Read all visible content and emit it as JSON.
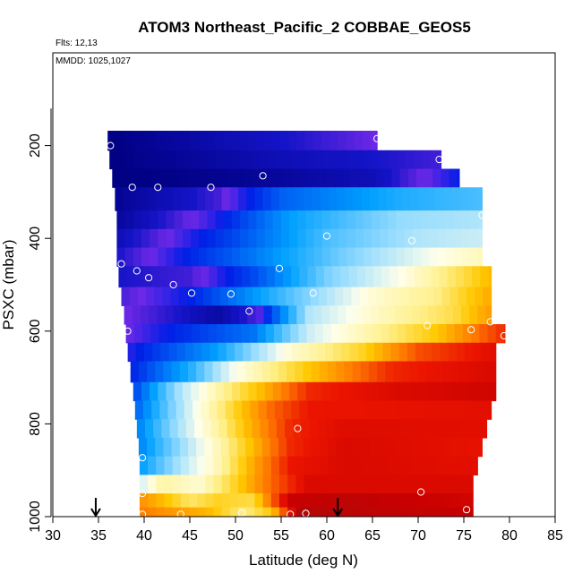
{
  "chart_data": {
    "type": "heatmap",
    "title": "ATOM3 Northeast_Pacific_2 COBBAE_GEOS5",
    "annotations": {
      "flights": "Flts: 12,13",
      "dates": "MMDD: 1025,1027"
    },
    "xlabel": "Latitude (deg N)",
    "ylabel": "PSXC (mbar)",
    "xlim": [
      30,
      85
    ],
    "ylim": [
      1000,
      0
    ],
    "x_ticks": [
      30,
      35,
      40,
      45,
      50,
      55,
      60,
      65,
      70,
      75,
      80,
      85
    ],
    "y_ticks": [
      200,
      400,
      600,
      800,
      1000
    ],
    "y_axis_reversed": true,
    "colorscale": "blue-white-yellow-red",
    "profile_markers_lat": [
      34.7,
      61.2
    ],
    "curtain_bands": [
      {
        "p_top": 168,
        "p_bot": 210,
        "lat_min": 36.0,
        "lat_max": 65.5,
        "stops": [
          [
            36,
            0.0
          ],
          [
            50,
            0.06
          ],
          [
            58,
            0.09
          ],
          [
            65.5,
            0.12
          ]
        ]
      },
      {
        "p_top": 210,
        "p_bot": 250,
        "lat_min": 36.2,
        "lat_max": 72.5,
        "stops": [
          [
            36,
            0.0
          ],
          [
            55,
            0.06
          ],
          [
            65,
            0.08
          ],
          [
            72.5,
            0.1
          ]
        ]
      },
      {
        "p_top": 250,
        "p_bot": 290,
        "lat_min": 36.5,
        "lat_max": 74.5,
        "stops": [
          [
            36,
            0.0
          ],
          [
            45,
            0.01
          ],
          [
            55,
            0.03
          ],
          [
            65,
            0.06
          ],
          [
            74.5,
            0.16
          ]
        ]
      },
      {
        "p_top": 290,
        "p_bot": 340,
        "lat_min": 36.8,
        "lat_max": 77.0,
        "stops": [
          [
            37,
            0.02
          ],
          [
            48,
            0.1
          ],
          [
            55,
            0.22
          ],
          [
            68,
            0.3
          ],
          [
            77,
            0.33
          ]
        ]
      },
      {
        "p_top": 340,
        "p_bot": 380,
        "lat_min": 37.0,
        "lat_max": 77.0,
        "stops": [
          [
            37,
            0.03
          ],
          [
            48,
            0.15
          ],
          [
            56,
            0.28
          ],
          [
            68,
            0.38
          ],
          [
            77,
            0.4
          ]
        ]
      },
      {
        "p_top": 380,
        "p_bot": 420,
        "lat_min": 37.0,
        "lat_max": 77.0,
        "stops": [
          [
            37,
            0.06
          ],
          [
            50,
            0.2
          ],
          [
            60,
            0.33
          ],
          [
            70,
            0.4
          ],
          [
            77,
            0.42
          ]
        ]
      },
      {
        "p_top": 420,
        "p_bot": 460,
        "lat_min": 37.0,
        "lat_max": 77.0,
        "stops": [
          [
            37,
            0.08
          ],
          [
            50,
            0.22
          ],
          [
            62,
            0.36
          ],
          [
            72,
            0.46
          ],
          [
            77,
            0.5
          ]
        ]
      },
      {
        "p_top": 460,
        "p_bot": 505,
        "lat_min": 37.2,
        "lat_max": 78.0,
        "stops": [
          [
            37,
            0.08
          ],
          [
            45,
            0.1
          ],
          [
            52,
            0.2
          ],
          [
            60,
            0.36
          ],
          [
            68,
            0.46
          ],
          [
            75,
            0.58
          ],
          [
            78,
            0.64
          ]
        ]
      },
      {
        "p_top": 505,
        "p_bot": 545,
        "lat_min": 37.5,
        "lat_max": 78.0,
        "stops": [
          [
            37,
            0.1
          ],
          [
            45,
            0.16
          ],
          [
            55,
            0.32
          ],
          [
            65,
            0.48
          ],
          [
            72,
            0.54
          ],
          [
            78,
            0.66
          ]
        ]
      },
      {
        "p_top": 545,
        "p_bot": 585,
        "lat_min": 37.8,
        "lat_max": 78.0,
        "stops": [
          [
            38,
            0.12
          ],
          [
            44,
            0.08
          ],
          [
            48,
            0.04
          ],
          [
            52,
            0.1
          ],
          [
            58,
            0.4
          ],
          [
            66,
            0.5
          ],
          [
            74,
            0.58
          ],
          [
            78,
            0.68
          ]
        ]
      },
      {
        "p_top": 585,
        "p_bot": 625,
        "lat_min": 38.0,
        "lat_max": 79.5,
        "stops": [
          [
            38,
            0.12
          ],
          [
            45,
            0.18
          ],
          [
            52,
            0.24
          ],
          [
            58,
            0.42
          ],
          [
            65,
            0.52
          ],
          [
            72,
            0.62
          ],
          [
            79.5,
            0.8
          ]
        ]
      },
      {
        "p_top": 625,
        "p_bot": 665,
        "lat_min": 38.2,
        "lat_max": 78.5,
        "stops": [
          [
            38,
            0.14
          ],
          [
            48,
            0.28
          ],
          [
            56,
            0.48
          ],
          [
            64,
            0.6
          ],
          [
            70,
            0.76
          ],
          [
            78,
            0.84
          ]
        ]
      },
      {
        "p_top": 665,
        "p_bot": 710,
        "lat_min": 38.5,
        "lat_max": 78.5,
        "stops": [
          [
            38,
            0.15
          ],
          [
            45,
            0.3
          ],
          [
            50,
            0.46
          ],
          [
            55,
            0.56
          ],
          [
            60,
            0.66
          ],
          [
            67,
            0.8
          ],
          [
            78,
            0.86
          ]
        ]
      },
      {
        "p_top": 710,
        "p_bot": 750,
        "lat_min": 38.8,
        "lat_max": 78.5,
        "stops": [
          [
            39,
            0.2
          ],
          [
            44,
            0.4
          ],
          [
            49,
            0.54
          ],
          [
            53,
            0.64
          ],
          [
            58,
            0.8
          ],
          [
            68,
            0.86
          ],
          [
            78,
            0.88
          ]
        ]
      },
      {
        "p_top": 750,
        "p_bot": 790,
        "lat_min": 39.0,
        "lat_max": 78.0,
        "stops": [
          [
            39,
            0.22
          ],
          [
            43,
            0.36
          ],
          [
            47,
            0.5
          ],
          [
            50,
            0.6
          ],
          [
            54,
            0.74
          ],
          [
            58,
            0.82
          ],
          [
            78,
            0.84
          ]
        ]
      },
      {
        "p_top": 790,
        "p_bot": 830,
        "lat_min": 39.2,
        "lat_max": 77.5,
        "stops": [
          [
            39,
            0.24
          ],
          [
            44,
            0.4
          ],
          [
            48,
            0.52
          ],
          [
            52,
            0.66
          ],
          [
            56,
            0.8
          ],
          [
            62,
            0.85
          ],
          [
            77,
            0.84
          ]
        ]
      },
      {
        "p_top": 830,
        "p_bot": 870,
        "lat_min": 39.4,
        "lat_max": 77.0,
        "stops": [
          [
            39,
            0.24
          ],
          [
            44,
            0.38
          ],
          [
            48,
            0.5
          ],
          [
            52,
            0.64
          ],
          [
            56,
            0.8
          ],
          [
            62,
            0.86
          ],
          [
            77,
            0.83
          ]
        ]
      },
      {
        "p_top": 870,
        "p_bot": 910,
        "lat_min": 39.5,
        "lat_max": 76.5,
        "stops": [
          [
            39,
            0.26
          ],
          [
            44,
            0.4
          ],
          [
            48,
            0.5
          ],
          [
            52,
            0.66
          ],
          [
            56,
            0.82
          ],
          [
            62,
            0.86
          ],
          [
            76,
            0.84
          ]
        ]
      },
      {
        "p_top": 910,
        "p_bot": 950,
        "lat_min": 39.5,
        "lat_max": 76.0,
        "stops": [
          [
            39,
            0.4
          ],
          [
            42,
            0.52
          ],
          [
            46,
            0.48
          ],
          [
            50,
            0.6
          ],
          [
            54,
            0.74
          ],
          [
            58,
            0.86
          ],
          [
            76,
            0.86
          ]
        ]
      },
      {
        "p_top": 950,
        "p_bot": 980,
        "lat_min": 39.5,
        "lat_max": 76.0,
        "stops": [
          [
            39,
            0.7
          ],
          [
            41,
            0.66
          ],
          [
            45,
            0.56
          ],
          [
            48,
            0.6
          ],
          [
            52,
            0.58
          ],
          [
            56,
            0.9
          ],
          [
            62,
            0.92
          ],
          [
            76,
            0.88
          ]
        ]
      },
      {
        "p_top": 980,
        "p_bot": 1000,
        "lat_min": 39.5,
        "lat_max": 76.0,
        "stops": [
          [
            39,
            0.72
          ],
          [
            43,
            0.68
          ],
          [
            47,
            0.64
          ],
          [
            51,
            0.54
          ],
          [
            54,
            0.62
          ],
          [
            57,
            0.94
          ],
          [
            64,
            0.92
          ],
          [
            76,
            0.9
          ]
        ]
      }
    ],
    "sample_points": [
      {
        "lat": 36.3,
        "p": 200
      },
      {
        "lat": 65.5,
        "p": 185
      },
      {
        "lat": 72.3,
        "p": 230
      },
      {
        "lat": 38.7,
        "p": 290
      },
      {
        "lat": 41.5,
        "p": 290
      },
      {
        "lat": 47.3,
        "p": 290
      },
      {
        "lat": 53.0,
        "p": 265
      },
      {
        "lat": 77.0,
        "p": 350
      },
      {
        "lat": 60.0,
        "p": 395
      },
      {
        "lat": 69.3,
        "p": 405
      },
      {
        "lat": 37.5,
        "p": 455
      },
      {
        "lat": 39.2,
        "p": 470
      },
      {
        "lat": 40.5,
        "p": 485
      },
      {
        "lat": 43.2,
        "p": 500
      },
      {
        "lat": 54.8,
        "p": 465
      },
      {
        "lat": 45.2,
        "p": 518
      },
      {
        "lat": 49.5,
        "p": 520
      },
      {
        "lat": 58.5,
        "p": 518
      },
      {
        "lat": 51.5,
        "p": 557
      },
      {
        "lat": 38.2,
        "p": 600
      },
      {
        "lat": 71.0,
        "p": 588
      },
      {
        "lat": 75.8,
        "p": 597
      },
      {
        "lat": 77.9,
        "p": 580
      },
      {
        "lat": 79.4,
        "p": 610
      },
      {
        "lat": 56.8,
        "p": 810
      },
      {
        "lat": 39.8,
        "p": 873
      },
      {
        "lat": 39.8,
        "p": 950
      },
      {
        "lat": 70.3,
        "p": 947
      },
      {
        "lat": 39.8,
        "p": 995
      },
      {
        "lat": 44.0,
        "p": 995
      },
      {
        "lat": 50.7,
        "p": 992
      },
      {
        "lat": 56.0,
        "p": 995
      },
      {
        "lat": 57.7,
        "p": 993
      },
      {
        "lat": 75.3,
        "p": 985
      }
    ]
  }
}
